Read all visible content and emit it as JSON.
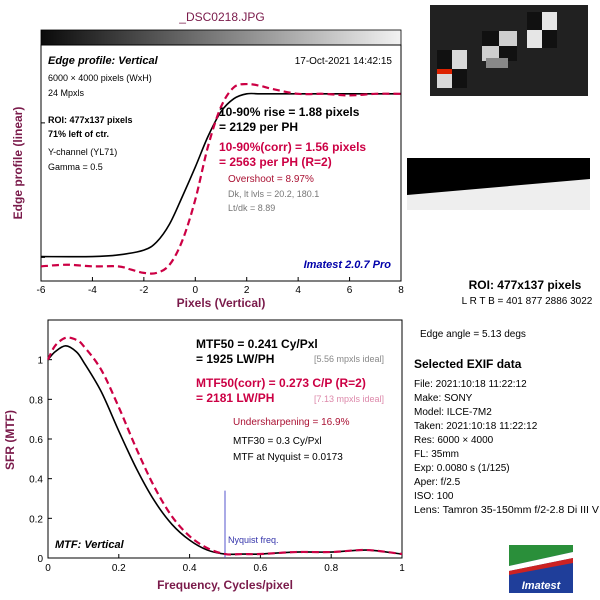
{
  "title": "_DSC0218.JPG",
  "colors": {
    "maroon": "#7a1a4a",
    "red": "#cc0044",
    "blue": "#0000aa",
    "gray": "#777777"
  },
  "top_chart": {
    "header_label": "Edge profile: Vertical",
    "timestamp": "17-Oct-2021 14:42:15",
    "info": [
      "6000 × 4000 pixels (WxH)",
      "24 Mpxls"
    ],
    "roi_line1": "ROI: 477x137 pixels",
    "roi_line2": "71% left of ctr.",
    "channel": "Y-channel  (YL71)",
    "gamma": "Gamma = 0.5",
    "rise_line1": "10-90% rise = 1.88 pixels",
    "rise_line2": "= 2129 per PH",
    "corr_line1": "10-90%(corr) = 1.56 pixels",
    "corr_line2": "= 2563 per PH  (R=2)",
    "overshoot": "Overshoot = 8.97%",
    "dk_levels": "Dk, lt lvls = 20.2, 180.1",
    "lt_dk": "Lt/dk = 8.89",
    "watermark": "Imatest 2.0.7 Pro"
  },
  "bottom_chart": {
    "mtf50_line1": "MTF50 = 0.241 Cy/Pxl",
    "mtf50_line2": "= 1925 LW/PH",
    "mtf50_ideal": "[5.56 mpxls ideal]",
    "corr_line1": "MTF50(corr) = 0.273 C/P  (R=2)",
    "corr_line2": "= 2181 LW/PH",
    "corr_ideal": "[7.13 mpxls ideal]",
    "undersharpening": "Undersharpening = 16.9%",
    "mtf30": "MTF30 = 0.3 Cy/Pxl",
    "nyquist_mtf": "MTF at Nyquist = 0.0173",
    "nyquist_label": "Nyquist freq.",
    "footer_label": "MTF: Vertical"
  },
  "roi_info": {
    "title": "ROI: 477x137 pixels",
    "sub": "L R  T B = 401 877  2886 3022",
    "edge_angle": "Edge angle = 5.13 degs"
  },
  "exif": {
    "title": "Selected EXIF data",
    "rows": [
      "File:  2021:10:18 11:22:12",
      "Make:  SONY",
      "Model:  ILCE-7M2",
      "Taken:  2021:10:18 11:22:12",
      "Res:   6000 × 4000",
      "FL:  35mm",
      "Exp:   0.0080 s  (1/125)",
      "Aper:   f/2.5",
      "ISO:   100",
      "Lens:  Tamron 35-150mm f/2-2.8 Di III V"
    ]
  },
  "logo_text": "Imatest",
  "chart_data": [
    {
      "type": "line",
      "title": "Edge profile: Vertical",
      "xlabel": "Pixels (Vertical)",
      "ylabel": "Edge profile (linear)",
      "xlim": [
        -6,
        8
      ],
      "xticks": [
        "-6",
        "-4",
        "-2",
        "0",
        "2",
        "4",
        "6",
        "8"
      ],
      "grid": false,
      "series": [
        {
          "style": "solid",
          "color": "#000000",
          "x": [
            -6,
            -4,
            -3,
            -2,
            -1.5,
            -1,
            -0.5,
            0,
            0.5,
            1,
            1.5,
            2,
            2.5,
            3,
            4,
            5,
            6,
            7,
            8
          ],
          "y": [
            0.0,
            0.0,
            0.01,
            0.04,
            0.09,
            0.2,
            0.37,
            0.55,
            0.74,
            0.89,
            0.97,
            1.0,
            1.0,
            1.0,
            1.0,
            1.0,
            1.0,
            1.0,
            1.0
          ]
        },
        {
          "style": "dashed",
          "color": "#cc0044",
          "x": [
            -6,
            -5,
            -4,
            -3,
            -2.5,
            -2,
            -1.5,
            -1,
            -0.5,
            0,
            0.5,
            1,
            1.5,
            2,
            2.5,
            3,
            4,
            5,
            6,
            7,
            8
          ],
          "y": [
            -0.06,
            -0.05,
            -0.06,
            -0.06,
            -0.08,
            -0.1,
            -0.1,
            -0.05,
            0.1,
            0.35,
            0.68,
            0.92,
            1.04,
            1.06,
            1.05,
            1.03,
            1.0,
            1.0,
            0.99,
            1.0,
            1.0
          ]
        }
      ]
    },
    {
      "type": "line",
      "title": "MTF: Vertical",
      "xlabel": "Frequency, Cycles/pixel",
      "ylabel": "SFR (MTF)",
      "xlim": [
        0,
        1
      ],
      "ylim": [
        0,
        1.2
      ],
      "xticks": [
        "0",
        "0.2",
        "0.4",
        "0.6",
        "0.8",
        "1"
      ],
      "yticks": [
        "0",
        "0.2",
        "0.4",
        "0.6",
        "0.8",
        "1"
      ],
      "nyquist_x": 0.5,
      "series": [
        {
          "style": "solid",
          "color": "#000000",
          "x": [
            0,
            0.02,
            0.05,
            0.08,
            0.1,
            0.15,
            0.2,
            0.25,
            0.3,
            0.35,
            0.4,
            0.45,
            0.5,
            0.55,
            0.6,
            0.7,
            0.8,
            0.9,
            1.0
          ],
          "y": [
            1.0,
            1.04,
            1.07,
            1.04,
            0.99,
            0.84,
            0.64,
            0.45,
            0.29,
            0.17,
            0.09,
            0.04,
            0.02,
            0.02,
            0.02,
            0.03,
            0.03,
            0.04,
            0.02
          ]
        },
        {
          "style": "dashed",
          "color": "#cc0044",
          "x": [
            0,
            0.02,
            0.05,
            0.08,
            0.1,
            0.15,
            0.2,
            0.25,
            0.3,
            0.35,
            0.4,
            0.45,
            0.5,
            0.55,
            0.6,
            0.7,
            0.8,
            0.9,
            1.0
          ],
          "y": [
            1.0,
            1.07,
            1.11,
            1.1,
            1.07,
            0.95,
            0.76,
            0.55,
            0.36,
            0.21,
            0.11,
            0.05,
            0.02,
            0.02,
            0.02,
            0.03,
            0.03,
            0.04,
            0.02
          ]
        }
      ]
    }
  ]
}
